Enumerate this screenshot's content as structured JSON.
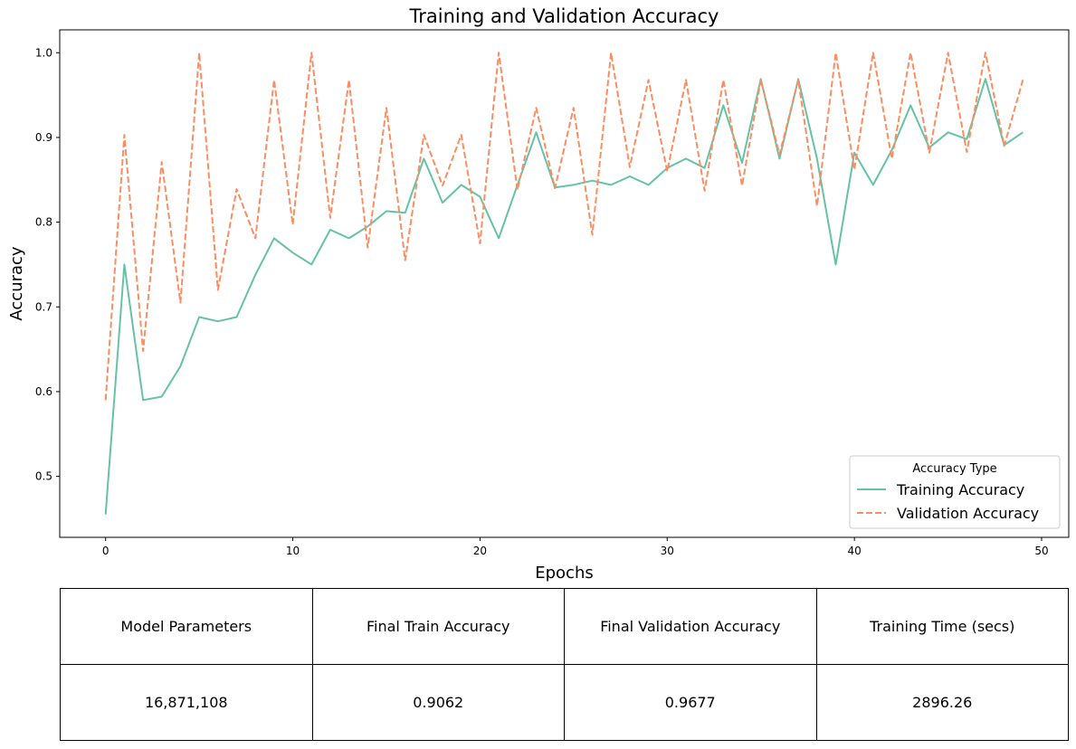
{
  "chart_data": {
    "type": "line",
    "title": "Training and Validation Accuracy",
    "xlabel": "Epochs",
    "ylabel": "Accuracy",
    "xlim": [
      -2.45,
      51.45
    ],
    "ylim": [
      0.428,
      1.027
    ],
    "xticks": [
      0,
      10,
      20,
      30,
      40,
      50
    ],
    "yticks": [
      0.5,
      0.6,
      0.7,
      0.8,
      0.9,
      1.0
    ],
    "ytick_labels": [
      "0.5",
      "0.6",
      "0.7",
      "0.8",
      "0.9",
      "1.0"
    ],
    "grid": false,
    "legend": {
      "title": "Accuracy Type",
      "placement": "lower-right"
    },
    "x": [
      0,
      1,
      2,
      3,
      4,
      5,
      6,
      7,
      8,
      9,
      10,
      11,
      12,
      13,
      14,
      15,
      16,
      17,
      18,
      19,
      20,
      21,
      22,
      23,
      24,
      25,
      26,
      27,
      28,
      29,
      30,
      31,
      32,
      33,
      34,
      35,
      36,
      37,
      38,
      39,
      40,
      41,
      42,
      43,
      44,
      45,
      46,
      47,
      48,
      49
    ],
    "series": [
      {
        "name": "Training Accuracy",
        "color": "#66c2a5",
        "dash": "solid",
        "values": [
          0.455,
          0.75,
          0.59,
          0.594,
          0.63,
          0.688,
          0.683,
          0.688,
          0.738,
          0.781,
          0.764,
          0.75,
          0.791,
          0.781,
          0.795,
          0.813,
          0.811,
          0.875,
          0.823,
          0.844,
          0.83,
          0.781,
          0.844,
          0.906,
          0.841,
          0.844,
          0.849,
          0.844,
          0.854,
          0.844,
          0.864,
          0.875,
          0.864,
          0.938,
          0.87,
          0.969,
          0.875,
          0.969,
          0.875,
          0.75,
          0.882,
          0.844,
          0.885,
          0.938,
          0.888,
          0.906,
          0.898,
          0.969,
          0.891,
          0.906
        ]
      },
      {
        "name": "Validation Accuracy",
        "color": "#fc8d62",
        "dash": "dashed",
        "values": [
          0.59,
          0.903,
          0.648,
          0.871,
          0.705,
          1.0,
          0.72,
          0.839,
          0.781,
          0.968,
          0.797,
          1.0,
          0.805,
          0.968,
          0.77,
          0.935,
          0.755,
          0.903,
          0.843,
          0.903,
          0.775,
          1.0,
          0.838,
          0.935,
          0.84,
          0.935,
          0.785,
          1.0,
          0.865,
          0.968,
          0.86,
          0.968,
          0.837,
          0.968,
          0.843,
          0.968,
          0.88,
          0.968,
          0.819,
          1.0,
          0.862,
          1.0,
          0.875,
          1.0,
          0.882,
          1.0,
          0.883,
          1.0,
          0.89,
          0.968
        ]
      }
    ]
  },
  "table": {
    "headers": [
      "Model Parameters",
      "Final Train Accuracy",
      "Final Validation Accuracy",
      "Training Time (secs)"
    ],
    "values": [
      "16,871,108",
      "0.9062",
      "0.9677",
      "2896.26"
    ]
  }
}
